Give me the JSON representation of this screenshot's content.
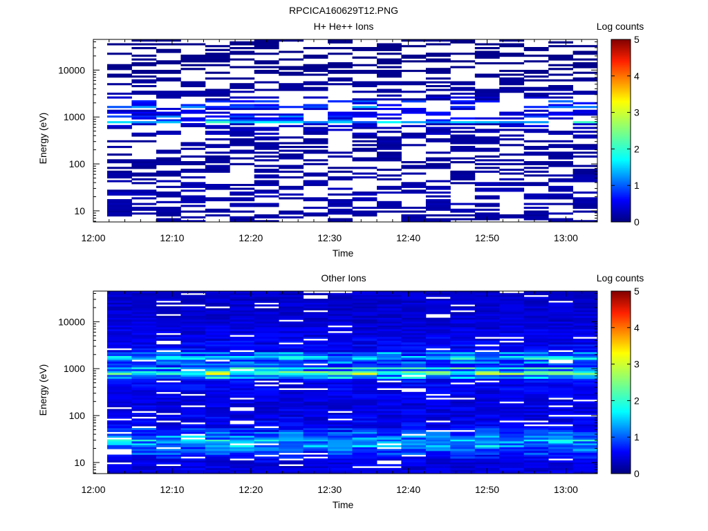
{
  "figure_title": "RPCICA160629T12.PNG",
  "chart_data": [
    {
      "type": "heatmap",
      "title": "H+ He++ Ions",
      "xlabel": "Time",
      "ylabel": "Energy (eV)",
      "y_scale": "log",
      "ylim": [
        5.8,
        45000
      ],
      "x_range": [
        "12:00",
        "13:04"
      ],
      "x_ticks": [
        "12:00",
        "12:10",
        "12:20",
        "12:30",
        "12:40",
        "12:50",
        "13:00"
      ],
      "y_ticks": [
        "10",
        "100",
        "1000",
        "10000"
      ],
      "colorbar": {
        "label": "Log counts",
        "min": 0,
        "max": 5,
        "ticks": [
          "0",
          "1",
          "2",
          "3",
          "4",
          "5"
        ]
      },
      "time_bins": [
        "12:02",
        "12:05",
        "12:08",
        "12:11",
        "12:14",
        "12:18",
        "12:21",
        "12:24",
        "12:27",
        "12:30",
        "12:34",
        "12:37",
        "12:40",
        "12:43",
        "12:46",
        "12:50",
        "12:53",
        "12:56",
        "12:59",
        "13:02"
      ],
      "sparsity": 0.55,
      "band_profile": [
        {
          "energy": 7,
          "level": 0.15
        },
        {
          "energy": 12,
          "level": 0.2
        },
        {
          "energy": 25,
          "level": 0.22
        },
        {
          "energy": 40,
          "level": 0.2
        },
        {
          "energy": 100,
          "level": 0.12
        },
        {
          "energy": 300,
          "level": 0.15
        },
        {
          "energy": 700,
          "level": 0.3
        },
        {
          "energy": 850,
          "level": 1.6
        },
        {
          "energy": 1000,
          "level": 0.5
        },
        {
          "energy": 1500,
          "level": 0.4
        },
        {
          "energy": 1800,
          "level": 1.0
        },
        {
          "energy": 2500,
          "level": 0.2
        },
        {
          "energy": 10000,
          "level": 0.05
        },
        {
          "energy": 45000,
          "level": 0.05
        }
      ]
    },
    {
      "type": "heatmap",
      "title": "Other Ions",
      "xlabel": "Time",
      "ylabel": "Energy (eV)",
      "y_scale": "log",
      "ylim": [
        5.8,
        45000
      ],
      "x_range": [
        "12:00",
        "13:04"
      ],
      "x_ticks": [
        "12:00",
        "12:10",
        "12:20",
        "12:30",
        "12:40",
        "12:50",
        "13:00"
      ],
      "y_ticks": [
        "10",
        "100",
        "1000",
        "10000"
      ],
      "colorbar": {
        "label": "Log counts",
        "min": 0,
        "max": 5,
        "ticks": [
          "0",
          "1",
          "2",
          "3",
          "4",
          "5"
        ]
      },
      "time_bins": [
        "12:02",
        "12:05",
        "12:08",
        "12:11",
        "12:14",
        "12:18",
        "12:21",
        "12:24",
        "12:27",
        "12:30",
        "12:34",
        "12:37",
        "12:40",
        "12:43",
        "12:46",
        "12:50",
        "12:53",
        "12:56",
        "12:59",
        "13:02"
      ],
      "sparsity": 0.07,
      "band_profile": [
        {
          "energy": 7,
          "level": 0.45
        },
        {
          "energy": 12,
          "level": 0.5
        },
        {
          "energy": 20,
          "level": 1.0
        },
        {
          "energy": 27,
          "level": 1.5
        },
        {
          "energy": 35,
          "level": 1.1
        },
        {
          "energy": 60,
          "level": 0.55
        },
        {
          "energy": 200,
          "level": 0.45
        },
        {
          "energy": 600,
          "level": 0.6
        },
        {
          "energy": 760,
          "level": 1.9
        },
        {
          "energy": 870,
          "level": 2.5
        },
        {
          "energy": 1000,
          "level": 1.2
        },
        {
          "energy": 1300,
          "level": 0.6
        },
        {
          "energy": 1800,
          "level": 1.6
        },
        {
          "energy": 2300,
          "level": 0.6
        },
        {
          "energy": 10000,
          "level": 0.4
        },
        {
          "energy": 45000,
          "level": 0.35
        }
      ]
    }
  ]
}
